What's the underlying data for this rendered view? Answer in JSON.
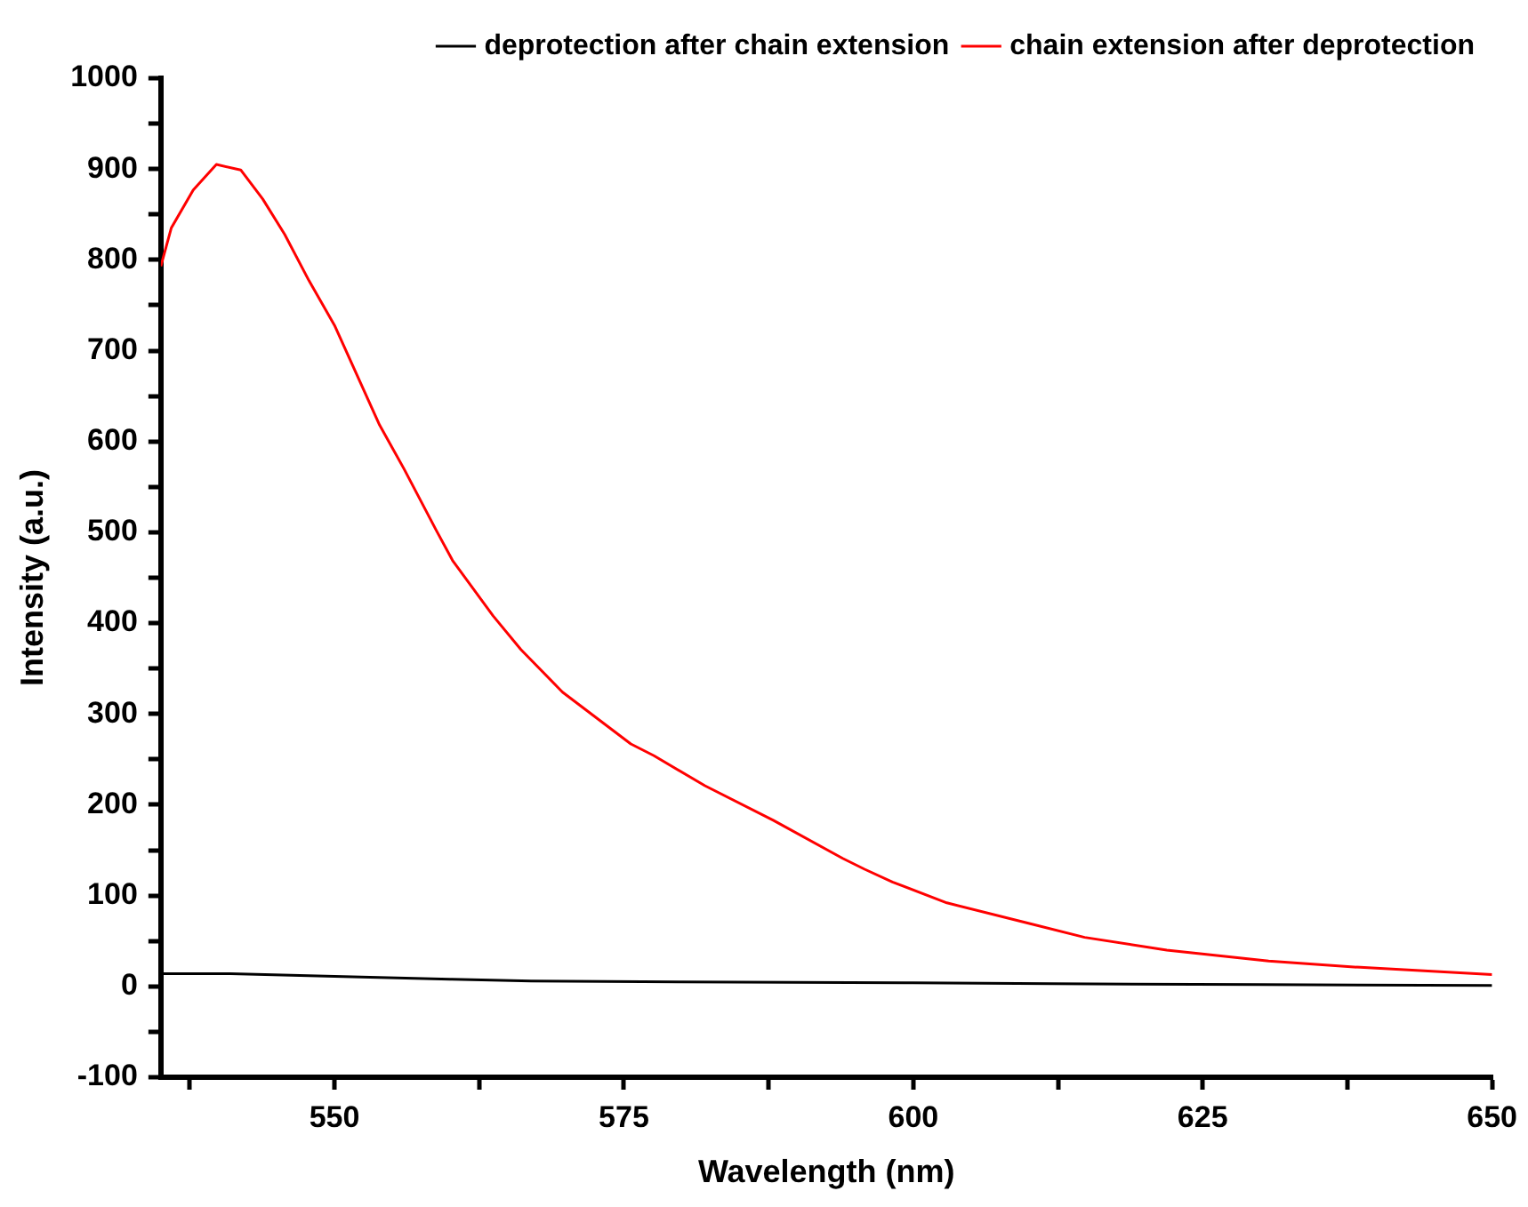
{
  "chart_data": {
    "type": "line",
    "xlabel": "Wavelength (nm)",
    "ylabel": "Intensity (a.u.)",
    "xlim": [
      535,
      650
    ],
    "ylim": [
      -100,
      1000
    ],
    "xticks": [
      {
        "value": 537.5,
        "label": null
      },
      550,
      {
        "value": 562.5,
        "label": null
      },
      575,
      {
        "value": 587.5,
        "label": null
      },
      600,
      {
        "value": 612.5,
        "label": null
      },
      625,
      {
        "value": 637.5,
        "label": null
      },
      650
    ],
    "yticks": [
      -100,
      {
        "value": -50,
        "label": null
      },
      0,
      {
        "value": 50,
        "label": null
      },
      100,
      {
        "value": 150,
        "label": null
      },
      200,
      {
        "value": 250,
        "label": null
      },
      300,
      {
        "value": 350,
        "label": null
      },
      400,
      {
        "value": 450,
        "label": null
      },
      500,
      {
        "value": 550,
        "label": null
      },
      600,
      {
        "value": 650,
        "label": null
      },
      700,
      {
        "value": 750,
        "label": null
      },
      800,
      {
        "value": 850,
        "label": null
      },
      900,
      {
        "value": 950,
        "label": null
      },
      1000
    ],
    "grid": false,
    "legend": "top right",
    "marker": "none",
    "line_style": "solid",
    "series": [
      {
        "name": "deprotection after chain extension",
        "color": "#000000",
        "x": [
          535,
          541,
          550,
          560,
          567,
          580,
          600,
          612,
          630,
          650
        ],
        "values": [
          14,
          14,
          11,
          8,
          6,
          5,
          4,
          3,
          2,
          1
        ]
      },
      {
        "name": "chain extension after deprotection",
        "color": "#ff0000",
        "x": [
          535,
          535.9,
          537.8,
          539.8,
          541.9,
          543.8,
          545.7,
          547.8,
          550,
          553.9,
          556,
          558.8,
          560.2,
          563.7,
          566.1,
          569.7,
          575.6,
          577.6,
          582,
          587.9,
          593.9,
          595.8,
          598.2,
          602.9,
          610.1,
          614.8,
          621.9,
          630.7,
          638.6,
          650
        ],
        "values": [
          793,
          835,
          877,
          905,
          899,
          867,
          828,
          777,
          728,
          618,
          570,
          502,
          469,
          408,
          371,
          324,
          267,
          254,
          221,
          183,
          141,
          129,
          115,
          92,
          69,
          54,
          40,
          28,
          21,
          13
        ]
      }
    ]
  }
}
